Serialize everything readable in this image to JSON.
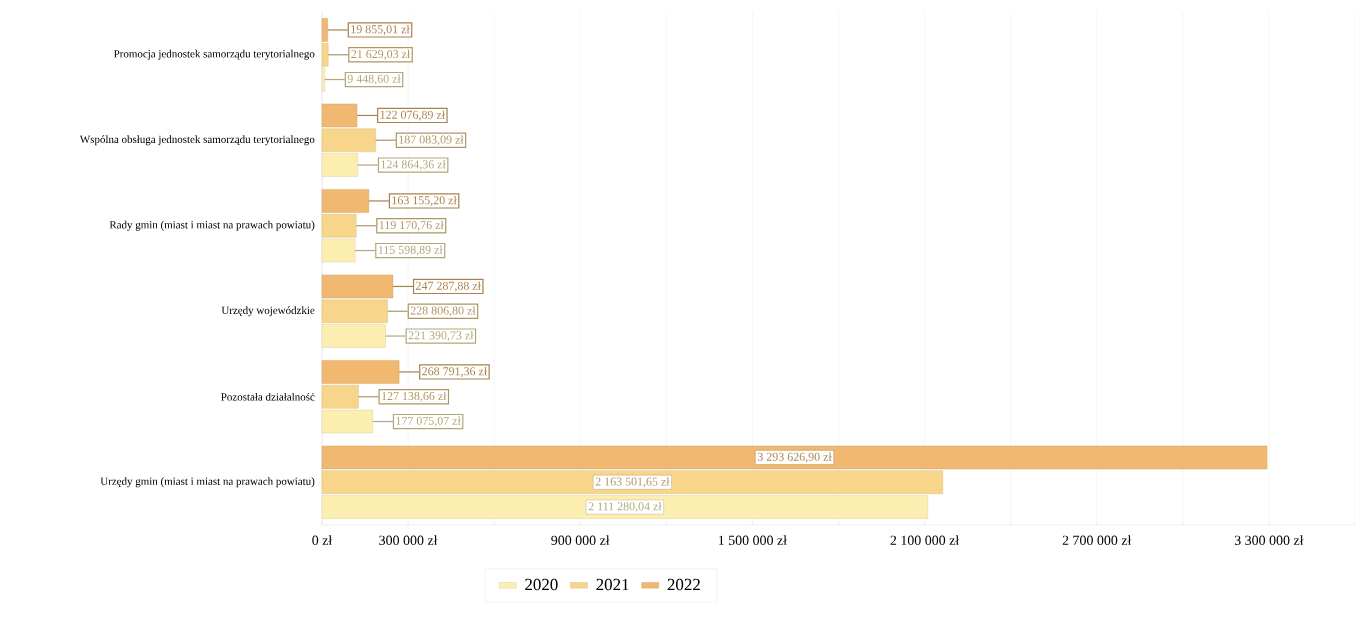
{
  "chart_data": {
    "type": "bar",
    "orientation": "horizontal",
    "categories": [
      "Promocja jednostek samorządu terytorialnego",
      "Wspólna obsługa jednostek samorządu terytorialnego",
      "Rady gmin (miast i miast na prawach powiatu)",
      "Urzędy wojewódzkie",
      "Pozostała działalność",
      "Urzędy gmin (miast i miast na prawach powiatu)"
    ],
    "series": [
      {
        "name": "2020",
        "color": "#fbeeb0",
        "values": [
          9448.6,
          124864.36,
          115598.89,
          221390.73,
          177075.07,
          2111280.04
        ],
        "value_labels": [
          "9 448,60 zł",
          "124 864,36 zł",
          "115 598,89 zł",
          "221 390,73 zł",
          "177 075,07 zł",
          "2 111 280,04 zł"
        ]
      },
      {
        "name": "2021",
        "color": "#f7d68c",
        "values": [
          21629.03,
          187083.09,
          119170.76,
          228806.8,
          127138.66,
          2163501.65
        ],
        "value_labels": [
          "21 629,03 zł",
          "187 083,09 zł",
          "119 170,76 zł",
          "228 806,80 zł",
          "127 138,66 zł",
          "2 163 501,65 zł"
        ]
      },
      {
        "name": "2022",
        "color": "#f0b870",
        "values": [
          19855.01,
          122076.89,
          163155.2,
          247287.88,
          268791.36,
          3293626.9
        ],
        "value_labels": [
          "19 855,01 zł",
          "122 076,89 zł",
          "163 155,20 zł",
          "247 287,88 zł",
          "268 791,36 zł",
          "3 293 626,90 zł"
        ]
      }
    ],
    "xlim": [
      0,
      3600000
    ],
    "xticks": [
      {
        "value": 0,
        "label": "0 zł"
      },
      {
        "value": 300000,
        "label": "300 000 zł"
      },
      {
        "value": 600000,
        "label": null
      },
      {
        "value": 900000,
        "label": "900 000 zł"
      },
      {
        "value": 1200000,
        "label": null
      },
      {
        "value": 1500000,
        "label": "1 500 000 zł"
      },
      {
        "value": 1800000,
        "label": null
      },
      {
        "value": 2100000,
        "label": "2 100 000 zł"
      },
      {
        "value": 2400000,
        "label": null
      },
      {
        "value": 2700000,
        "label": "2 700 000 zł"
      },
      {
        "value": 3000000,
        "label": null
      },
      {
        "value": 3300000,
        "label": "3 300 000 zł"
      },
      {
        "value": 3600000,
        "label": null
      }
    ],
    "grid": "x",
    "legend": "bottom"
  }
}
